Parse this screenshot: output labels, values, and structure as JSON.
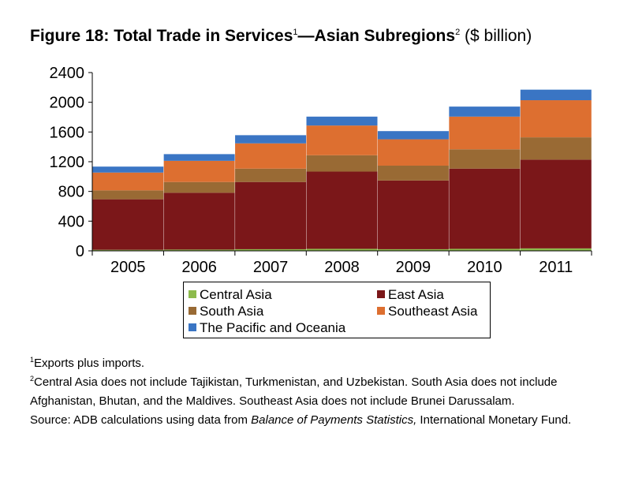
{
  "title": {
    "main": "Figure 18: Total Trade in Services",
    "ref1": "1",
    "dash": "—Asian Subregions",
    "ref2": "2",
    "unit": " ($ billion)"
  },
  "colors": {
    "Central Asia": "#8dbb4c",
    "East Asia": "#7b1719",
    "South Asia": "#996a34",
    "Southeast Asia": "#dd6f30",
    "The Pacific and Oceania": "#3a75c4"
  },
  "chart_data": {
    "type": "bar",
    "stacked": true,
    "categories": [
      "2005",
      "2006",
      "2007",
      "2008",
      "2009",
      "2010",
      "2011"
    ],
    "series": [
      {
        "name": "Central Asia",
        "values": [
          14,
          17,
          22,
          27,
          22,
          27,
          33
        ]
      },
      {
        "name": "East Asia",
        "values": [
          680,
          765,
          905,
          1040,
          925,
          1080,
          1195
        ]
      },
      {
        "name": "South Asia",
        "values": [
          120,
          145,
          180,
          220,
          200,
          260,
          300
        ]
      },
      {
        "name": "Southeast Asia",
        "values": [
          240,
          285,
          340,
          400,
          355,
          440,
          500
        ]
      },
      {
        "name": "The Pacific and Oceania",
        "values": [
          80,
          90,
          110,
          120,
          110,
          135,
          142
        ]
      }
    ],
    "ylim": [
      0,
      2400
    ],
    "yticks": [
      0,
      400,
      800,
      1200,
      1600,
      2000,
      2400
    ],
    "xlabel": "",
    "ylabel": "",
    "grid": false,
    "legend_position": "bottom"
  },
  "legend": [
    {
      "label": "Central Asia"
    },
    {
      "label": "East Asia"
    },
    {
      "label": "South Asia"
    },
    {
      "label": "Southeast Asia"
    },
    {
      "label": "The Pacific and Oceania"
    }
  ],
  "notes": {
    "n1_ref": "1",
    "n1_text": "Exports plus imports.",
    "n2_ref": "2",
    "n2_text": "Central Asia does not include Tajikistan, Turkmenistan, and Uzbekistan. South Asia does not include Afghanistan, Bhutan, and the Maldives. Southeast Asia does not include Brunei Darussalam.",
    "source_prefix": "Source: ADB calculations using data from ",
    "source_italic": "Balance of Payments Statistics,",
    "source_suffix": " International Monetary Fund."
  }
}
